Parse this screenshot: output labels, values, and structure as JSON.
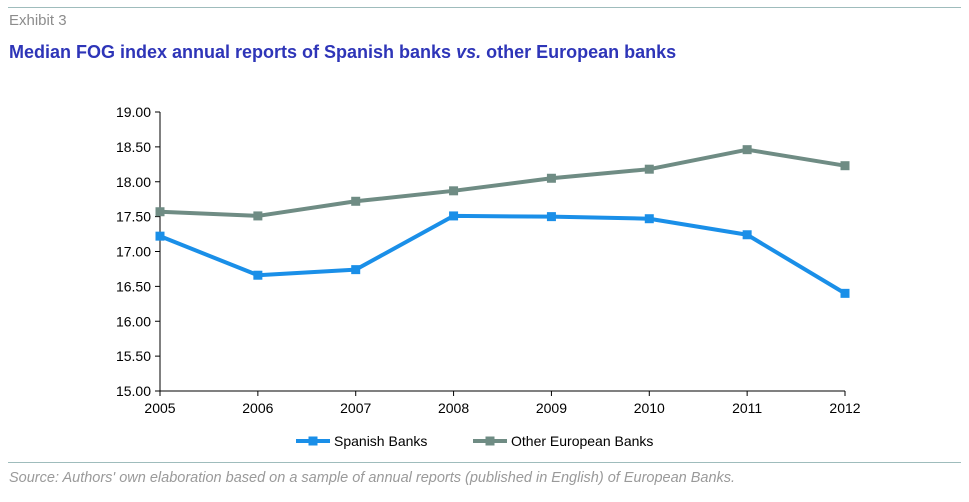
{
  "header": {
    "exhibit": "Exhibit 3",
    "title_part1": "Median FOG index annual reports of Spanish banks ",
    "title_vs": "vs.",
    "title_part2": " other European banks"
  },
  "source": "Source: Authors' own elaboration based on a sample of annual reports (published in English) of European Banks.",
  "colors": {
    "spanish": "#1a8fe8",
    "european": "#6f8c84",
    "title": "#2e35b8"
  },
  "chart_data": {
    "type": "line",
    "title": "Median FOG index annual reports of Spanish banks vs. other European banks",
    "x": [
      "2005",
      "2006",
      "2007",
      "2008",
      "2009",
      "2010",
      "2011",
      "2012"
    ],
    "y_ticks": [
      "15.00",
      "15.50",
      "16.00",
      "16.50",
      "17.00",
      "17.50",
      "18.00",
      "18.50",
      "19.00"
    ],
    "ylim": [
      15,
      19
    ],
    "legend_position": "bottom",
    "series": [
      {
        "name": "Spanish Banks",
        "values": [
          17.22,
          16.66,
          16.74,
          17.51,
          17.5,
          17.47,
          17.24,
          16.4
        ]
      },
      {
        "name": "Other European Banks",
        "values": [
          17.57,
          17.51,
          17.72,
          17.87,
          18.05,
          18.18,
          18.46,
          18.23
        ]
      }
    ]
  }
}
